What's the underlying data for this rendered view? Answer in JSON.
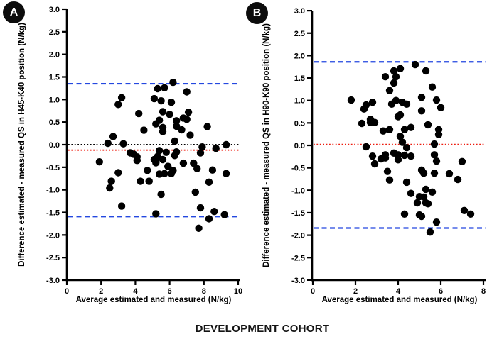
{
  "figure": {
    "caption": "DEVELOPMENT COHORT"
  },
  "colors": {
    "marker": "#000000",
    "loa_blue": "#2448e0",
    "bias_red": "#ed1c0f",
    "zero_black": "#000000"
  },
  "chart_data": [
    {
      "type": "scatter",
      "panel_label": "A",
      "xlabel": "Average estimated and measured (N/kg)",
      "ylabel": "Difference estimated - measured QS in H45-K40 position (N/kg)",
      "xlim": [
        0,
        10
      ],
      "ylim": [
        -3.0,
        3.0
      ],
      "xticks": [
        0,
        2,
        4,
        6,
        8,
        10
      ],
      "yticks": [
        3.0,
        2.5,
        2.0,
        1.5,
        1.0,
        0.5,
        0.0,
        -0.5,
        -1.0,
        -1.5,
        -2.0,
        -2.5,
        -3.0
      ],
      "grid": false,
      "legend": "none",
      "reference_lines": [
        {
          "name": "upper-limit-of-agreement",
          "value": 1.35,
          "color": "#2448e0",
          "style": "dashed"
        },
        {
          "name": "zero-line",
          "value": 0.0,
          "color": "#000000",
          "style": "dotted"
        },
        {
          "name": "mean-bias",
          "value": -0.12,
          "color": "#ed1c0f",
          "style": "dotted"
        },
        {
          "name": "lower-limit-of-agreement",
          "value": -1.59,
          "color": "#2448e0",
          "style": "dashed"
        }
      ],
      "points": [
        [
          6.2,
          1.38
        ],
        [
          5.3,
          1.24
        ],
        [
          5.7,
          1.26
        ],
        [
          7.0,
          1.17
        ],
        [
          3.2,
          1.04
        ],
        [
          5.1,
          1.02
        ],
        [
          5.5,
          0.97
        ],
        [
          6.1,
          0.94
        ],
        [
          3.0,
          0.89
        ],
        [
          4.2,
          0.69
        ],
        [
          5.6,
          0.73
        ],
        [
          6.0,
          0.67
        ],
        [
          7.1,
          0.72
        ],
        [
          5.4,
          0.54
        ],
        [
          5.2,
          0.46
        ],
        [
          6.4,
          0.53
        ],
        [
          6.8,
          0.59
        ],
        [
          7.0,
          0.56
        ],
        [
          6.4,
          0.41
        ],
        [
          5.6,
          0.38
        ],
        [
          5.6,
          0.29
        ],
        [
          6.7,
          0.33
        ],
        [
          8.2,
          0.4
        ],
        [
          7.2,
          0.21
        ],
        [
          4.5,
          0.32
        ],
        [
          2.7,
          0.18
        ],
        [
          6.3,
          0.08
        ],
        [
          2.4,
          0.03
        ],
        [
          3.3,
          0.02
        ],
        [
          9.3,
          0.0
        ],
        [
          7.9,
          -0.05
        ],
        [
          8.7,
          -0.08
        ],
        [
          5.4,
          -0.13
        ],
        [
          6.4,
          -0.16
        ],
        [
          3.7,
          -0.18
        ],
        [
          3.9,
          -0.21
        ],
        [
          7.8,
          -0.18
        ],
        [
          5.8,
          -0.17
        ],
        [
          5.3,
          -0.26
        ],
        [
          6.3,
          -0.24
        ],
        [
          4.1,
          -0.27
        ],
        [
          5.1,
          -0.33
        ],
        [
          5.6,
          -0.33
        ],
        [
          4.1,
          -0.35
        ],
        [
          1.9,
          -0.38
        ],
        [
          5.2,
          -0.4
        ],
        [
          7.4,
          -0.41
        ],
        [
          6.8,
          -0.41
        ],
        [
          5.9,
          -0.48
        ],
        [
          7.6,
          -0.53
        ],
        [
          8.5,
          -0.56
        ],
        [
          6.2,
          -0.57
        ],
        [
          4.7,
          -0.57
        ],
        [
          3.0,
          -0.62
        ],
        [
          5.4,
          -0.65
        ],
        [
          5.7,
          -0.64
        ],
        [
          6.1,
          -0.64
        ],
        [
          9.3,
          -0.64
        ],
        [
          2.6,
          -0.81
        ],
        [
          4.3,
          -0.81
        ],
        [
          4.8,
          -0.81
        ],
        [
          8.3,
          -0.83
        ],
        [
          2.5,
          -0.96
        ],
        [
          7.5,
          -1.05
        ],
        [
          5.5,
          -1.1
        ],
        [
          3.2,
          -1.36
        ],
        [
          7.8,
          -1.4
        ],
        [
          8.6,
          -1.48
        ],
        [
          5.2,
          -1.53
        ],
        [
          9.2,
          -1.55
        ],
        [
          8.3,
          -1.64
        ],
        [
          7.7,
          -1.85
        ]
      ]
    },
    {
      "type": "scatter",
      "panel_label": "B",
      "xlabel": "Average estimated and measured (N/kg)",
      "ylabel": "Difference estimated - measured QS in H90-K90 position (N/kg)",
      "xlim": [
        0,
        8
      ],
      "ylim": [
        -3.0,
        3.0
      ],
      "xticks": [
        0,
        2,
        4,
        6,
        8
      ],
      "yticks": [
        3.0,
        2.5,
        2.0,
        1.5,
        1.0,
        0.5,
        0.0,
        -0.5,
        -1.0,
        -1.5,
        -2.0,
        -2.5,
        -3.0
      ],
      "grid": false,
      "legend": "none",
      "reference_lines": [
        {
          "name": "upper-limit-of-agreement",
          "value": 1.86,
          "color": "#2448e0",
          "style": "dashed"
        },
        {
          "name": "mean-bias",
          "value": 0.02,
          "color": "#ed1c0f",
          "style": "dotted"
        },
        {
          "name": "lower-limit-of-agreement",
          "value": -1.84,
          "color": "#2448e0",
          "style": "dashed"
        }
      ],
      "points": [
        [
          4.8,
          1.8
        ],
        [
          4.1,
          1.71
        ],
        [
          3.8,
          1.66
        ],
        [
          5.3,
          1.66
        ],
        [
          3.9,
          1.53
        ],
        [
          3.4,
          1.53
        ],
        [
          3.8,
          1.39
        ],
        [
          5.6,
          1.3
        ],
        [
          3.6,
          1.22
        ],
        [
          5.1,
          1.07
        ],
        [
          5.8,
          1.01
        ],
        [
          1.8,
          1.01
        ],
        [
          3.9,
          1.0
        ],
        [
          2.8,
          0.96
        ],
        [
          4.2,
          0.96
        ],
        [
          3.7,
          0.92
        ],
        [
          4.4,
          0.92
        ],
        [
          2.5,
          0.9
        ],
        [
          6.0,
          0.84
        ],
        [
          2.4,
          0.81
        ],
        [
          5.1,
          0.77
        ],
        [
          4.1,
          0.68
        ],
        [
          4.0,
          0.64
        ],
        [
          2.7,
          0.58
        ],
        [
          2.7,
          0.51
        ],
        [
          2.9,
          0.51
        ],
        [
          2.3,
          0.49
        ],
        [
          5.4,
          0.46
        ],
        [
          4.6,
          0.4
        ],
        [
          4.3,
          0.35
        ],
        [
          3.6,
          0.35
        ],
        [
          5.9,
          0.35
        ],
        [
          3.3,
          0.32
        ],
        [
          5.9,
          0.24
        ],
        [
          4.1,
          0.2
        ],
        [
          4.2,
          0.07
        ],
        [
          5.7,
          0.03
        ],
        [
          2.5,
          -0.03
        ],
        [
          4.4,
          -0.05
        ],
        [
          3.8,
          -0.17
        ],
        [
          3.4,
          -0.21
        ],
        [
          4.0,
          -0.21
        ],
        [
          5.7,
          -0.21
        ],
        [
          4.3,
          -0.22
        ],
        [
          2.8,
          -0.24
        ],
        [
          4.6,
          -0.24
        ],
        [
          3.4,
          -0.28
        ],
        [
          3.2,
          -0.3
        ],
        [
          4.0,
          -0.32
        ],
        [
          5.8,
          -0.35
        ],
        [
          7.0,
          -0.36
        ],
        [
          2.9,
          -0.41
        ],
        [
          5.1,
          -0.55
        ],
        [
          3.5,
          -0.58
        ],
        [
          5.2,
          -0.62
        ],
        [
          5.7,
          -0.62
        ],
        [
          6.4,
          -0.63
        ],
        [
          6.8,
          -0.76
        ],
        [
          3.6,
          -0.77
        ],
        [
          4.4,
          -0.82
        ],
        [
          5.3,
          -0.98
        ],
        [
          5.6,
          -1.04
        ],
        [
          4.6,
          -1.07
        ],
        [
          5.0,
          -1.14
        ],
        [
          5.2,
          -1.15
        ],
        [
          4.9,
          -1.28
        ],
        [
          5.3,
          -1.28
        ],
        [
          5.4,
          -1.3
        ],
        [
          4.3,
          -1.53
        ],
        [
          5.0,
          -1.55
        ],
        [
          5.1,
          -1.58
        ],
        [
          7.1,
          -1.45
        ],
        [
          7.4,
          -1.53
        ],
        [
          5.8,
          -1.71
        ],
        [
          5.5,
          -1.93
        ]
      ]
    }
  ]
}
